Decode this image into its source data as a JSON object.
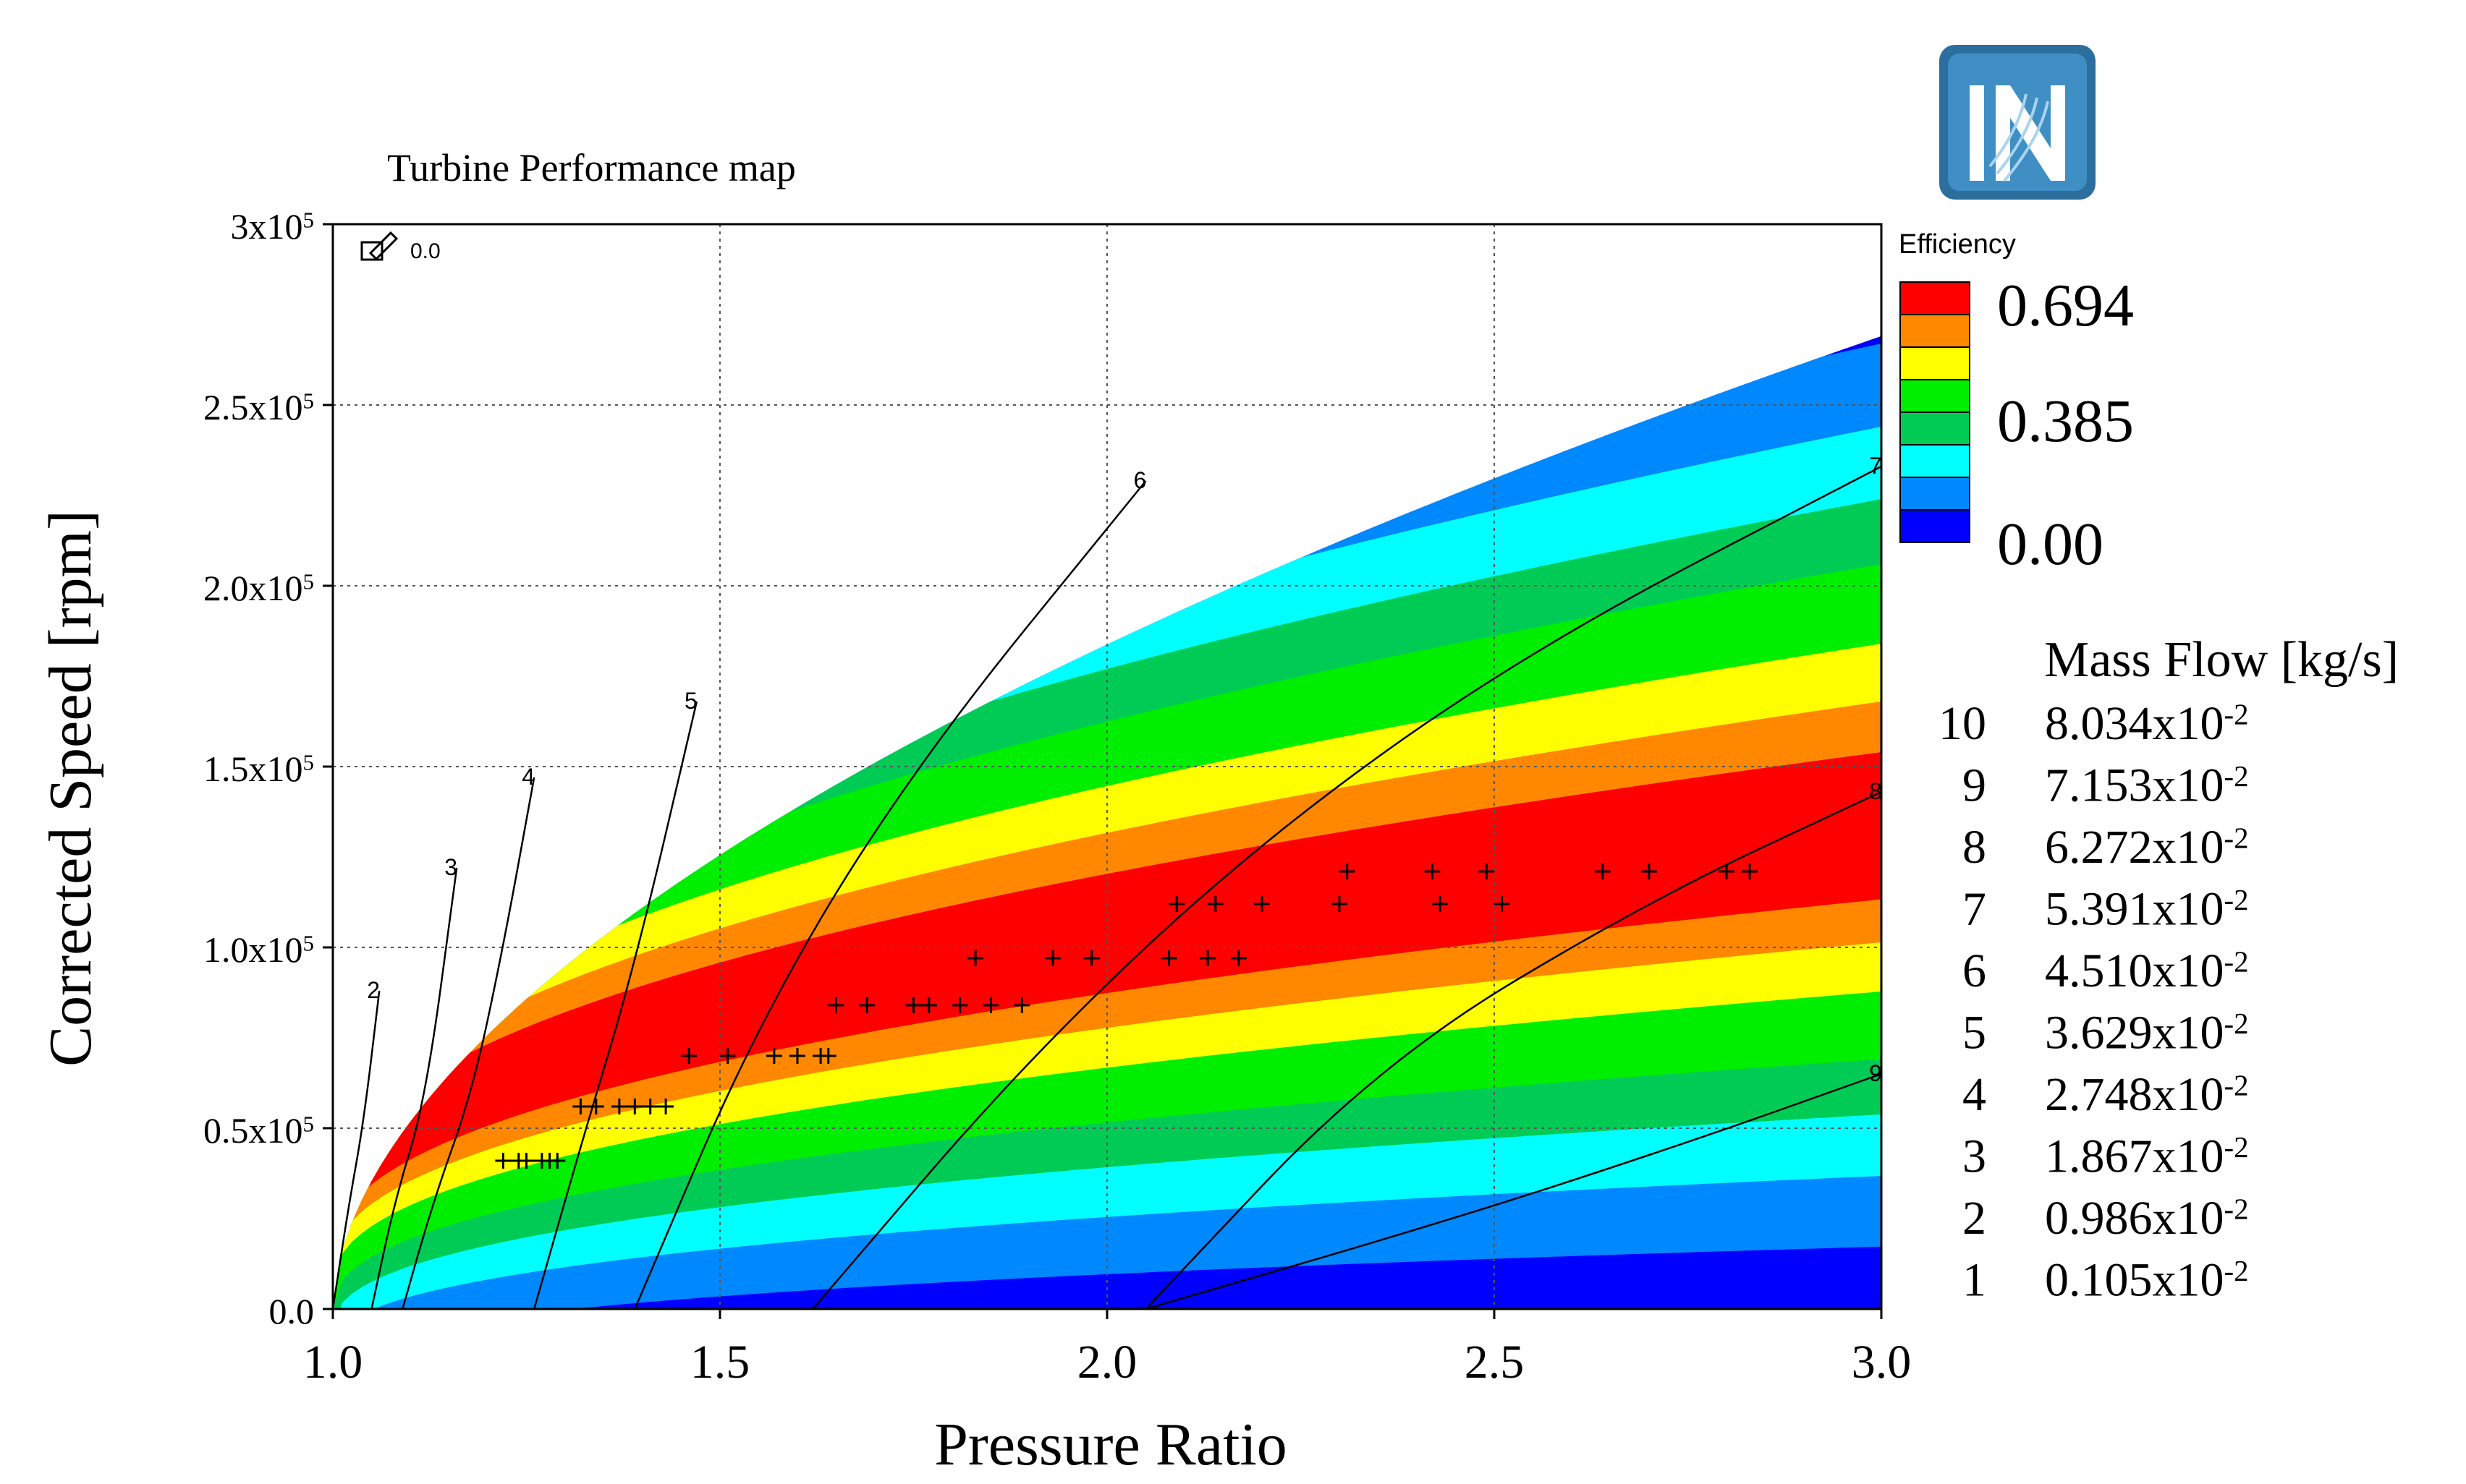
{
  "chart_data": {
    "type": "contour",
    "title": "Turbine Performance map",
    "xlabel": "Pressure Ratio",
    "ylabel": "Corrected Speed [rpm]",
    "xlim": [
      1.0,
      3.0
    ],
    "ylim": [
      0,
      300000
    ],
    "grid": true,
    "x_ticks": [
      {
        "value": 1.0,
        "label": "1.0"
      },
      {
        "value": 1.5,
        "label": "1.5"
      },
      {
        "value": 2.0,
        "label": "2.0"
      },
      {
        "value": 2.5,
        "label": "2.5"
      },
      {
        "value": 3.0,
        "label": "3.0"
      }
    ],
    "y_ticks": [
      {
        "value": 0,
        "label": "0.0",
        "exp": ""
      },
      {
        "value": 50000,
        "label": "0.5x10",
        "exp": "5"
      },
      {
        "value": 100000,
        "label": "1.0x10",
        "exp": "5"
      },
      {
        "value": 150000,
        "label": "1.5x10",
        "exp": "5"
      },
      {
        "value": 200000,
        "label": "2.0x10",
        "exp": "5"
      },
      {
        "value": 250000,
        "label": "2.5x10",
        "exp": "5"
      },
      {
        "value": 300000,
        "label": "3x10",
        "exp": "5"
      }
    ],
    "pencil_annotation": "0.0",
    "colorbar": {
      "title": "Efficiency",
      "labels": [
        "0.694",
        "0.385",
        "0.00"
      ],
      "colors": [
        "#ff0000",
        "#ff8800",
        "#ffff00",
        "#00ee00",
        "#00cc55",
        "#00ffff",
        "#0088ff",
        "#0000ff"
      ]
    },
    "band_colors": [
      "#0000ff",
      "#0088ff",
      "#00ffff",
      "#00cc55",
      "#00ee00",
      "#ffff00",
      "#ff8800",
      "#ff0000"
    ],
    "mass_flow_legend": {
      "title": "Mass Flow [kg/s]",
      "entries": [
        {
          "id": "10",
          "mantissa": "8.034x10",
          "exp": "-2"
        },
        {
          "id": "9",
          "mantissa": "7.153x10",
          "exp": "-2"
        },
        {
          "id": "8",
          "mantissa": "6.272x10",
          "exp": "-2"
        },
        {
          "id": "7",
          "mantissa": "5.391x10",
          "exp": "-2"
        },
        {
          "id": "6",
          "mantissa": "4.510x10",
          "exp": "-2"
        },
        {
          "id": "5",
          "mantissa": "3.629x10",
          "exp": "-2"
        },
        {
          "id": "4",
          "mantissa": "2.748x10",
          "exp": "-2"
        },
        {
          "id": "3",
          "mantissa": "1.867x10",
          "exp": "-2"
        },
        {
          "id": "2",
          "mantissa": "0.986x10",
          "exp": "-2"
        },
        {
          "id": "1",
          "mantissa": "0.105x10",
          "exp": "-2"
        }
      ]
    },
    "mass_flow_lines": [
      {
        "label": "2",
        "x": [
          1.0,
          1.02,
          1.04,
          1.06
        ],
        "y": [
          0,
          28000,
          52000,
          88000
        ]
      },
      {
        "label": "3",
        "x": [
          1.05,
          1.08,
          1.12,
          1.16
        ],
        "y": [
          0,
          30000,
          58000,
          122000
        ]
      },
      {
        "label": "4",
        "x": [
          1.09,
          1.13,
          1.18,
          1.22,
          1.26
        ],
        "y": [
          0,
          30000,
          60000,
          100000,
          147000
        ]
      },
      {
        "label": "5",
        "x": [
          1.26,
          1.32,
          1.39,
          1.47
        ],
        "y": [
          0,
          45000,
          95000,
          168000
        ]
      },
      {
        "label": "6",
        "x": [
          1.39,
          1.55,
          1.75,
          2.05
        ],
        "y": [
          0,
          80000,
          150000,
          229000
        ]
      },
      {
        "label": "7",
        "x": [
          1.62,
          1.9,
          2.2,
          2.55,
          3.0
        ],
        "y": [
          0,
          70000,
          130000,
          183000,
          233000
        ]
      },
      {
        "label": "8",
        "x": [
          2.05,
          2.35,
          2.7,
          3.0
        ],
        "y": [
          0,
          68000,
          113000,
          143000
        ]
      },
      {
        "label": "9",
        "x": [
          2.05,
          2.45,
          2.75,
          3.0
        ],
        "y": [
          0,
          25000,
          46000,
          65000
        ]
      }
    ],
    "operating_points": [
      {
        "x": 1.22,
        "y": 41000
      },
      {
        "x": 1.24,
        "y": 41000
      },
      {
        "x": 1.25,
        "y": 41000
      },
      {
        "x": 1.27,
        "y": 41000
      },
      {
        "x": 1.28,
        "y": 41000
      },
      {
        "x": 1.29,
        "y": 41000
      },
      {
        "x": 1.32,
        "y": 56000
      },
      {
        "x": 1.34,
        "y": 56000
      },
      {
        "x": 1.37,
        "y": 56000
      },
      {
        "x": 1.39,
        "y": 56000
      },
      {
        "x": 1.41,
        "y": 56000
      },
      {
        "x": 1.43,
        "y": 56000
      },
      {
        "x": 1.46,
        "y": 70000
      },
      {
        "x": 1.51,
        "y": 70000
      },
      {
        "x": 1.57,
        "y": 70000
      },
      {
        "x": 1.6,
        "y": 70000
      },
      {
        "x": 1.63,
        "y": 70000
      },
      {
        "x": 1.64,
        "y": 70000
      },
      {
        "x": 1.65,
        "y": 84000
      },
      {
        "x": 1.69,
        "y": 84000
      },
      {
        "x": 1.75,
        "y": 84000
      },
      {
        "x": 1.77,
        "y": 84000
      },
      {
        "x": 1.81,
        "y": 84000
      },
      {
        "x": 1.85,
        "y": 84000
      },
      {
        "x": 1.89,
        "y": 84000
      },
      {
        "x": 1.83,
        "y": 97000
      },
      {
        "x": 1.93,
        "y": 97000
      },
      {
        "x": 1.98,
        "y": 97000
      },
      {
        "x": 2.08,
        "y": 97000
      },
      {
        "x": 2.13,
        "y": 97000
      },
      {
        "x": 2.17,
        "y": 97000
      },
      {
        "x": 2.09,
        "y": 112000
      },
      {
        "x": 2.14,
        "y": 112000
      },
      {
        "x": 2.2,
        "y": 112000
      },
      {
        "x": 2.3,
        "y": 112000
      },
      {
        "x": 2.43,
        "y": 112000
      },
      {
        "x": 2.51,
        "y": 112000
      },
      {
        "x": 2.31,
        "y": 121000
      },
      {
        "x": 2.42,
        "y": 121000
      },
      {
        "x": 2.49,
        "y": 121000
      },
      {
        "x": 2.64,
        "y": 121000
      },
      {
        "x": 2.7,
        "y": 121000
      },
      {
        "x": 2.8,
        "y": 121000
      },
      {
        "x": 2.83,
        "y": 121000
      }
    ]
  }
}
